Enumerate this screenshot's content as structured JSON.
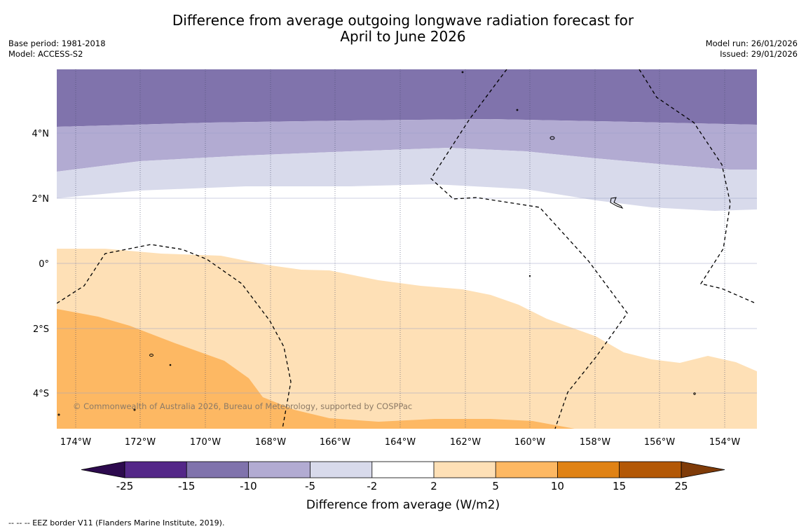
{
  "title": {
    "line1": "Difference from average outgoing longwave radiation forecast for",
    "line2": "April to June 2026"
  },
  "meta_left": {
    "base_period": "Base period: 1981-2018",
    "model": "Model: ACCESS-S2"
  },
  "meta_right": {
    "model_run": "Model run: 26/01/2026",
    "issued": "Issued: 29/01/2026"
  },
  "map": {
    "lat_labels": [
      "4°N",
      "2°N",
      "0°",
      "2°S",
      "4°S"
    ],
    "lon_labels": [
      "174°W",
      "172°W",
      "170°W",
      "168°W",
      "166°W",
      "164°W",
      "162°W",
      "160°W",
      "158°W",
      "156°W",
      "154°W"
    ],
    "copyright": "© Commonwealth of Australia 2026, Bureau of Meteorology, supported by COSPPac"
  },
  "colorbar": {
    "label": "Difference from average (W/m2)",
    "ticks": [
      "-25",
      "-15",
      "-10",
      "-5",
      "-2",
      "2",
      "5",
      "10",
      "15",
      "25"
    ],
    "colors": {
      "under": "#2d0a4e",
      "bin_m25_m15": "#542788",
      "bin_m15_m10": "#8073ac",
      "bin_m10_m5": "#b2abd2",
      "bin_m5_m2": "#d8daeb",
      "bin_m2_2": "#ffffff",
      "bin_2_5": "#fee0b6",
      "bin_5_10": "#fdb863",
      "bin_10_15": "#e08214",
      "bin_15_25": "#b35806",
      "over": "#7f3b08"
    }
  },
  "footer": {
    "eez_note": "--  --  -- EEZ border V11 (Flanders Marine Institute, 2019)."
  }
}
